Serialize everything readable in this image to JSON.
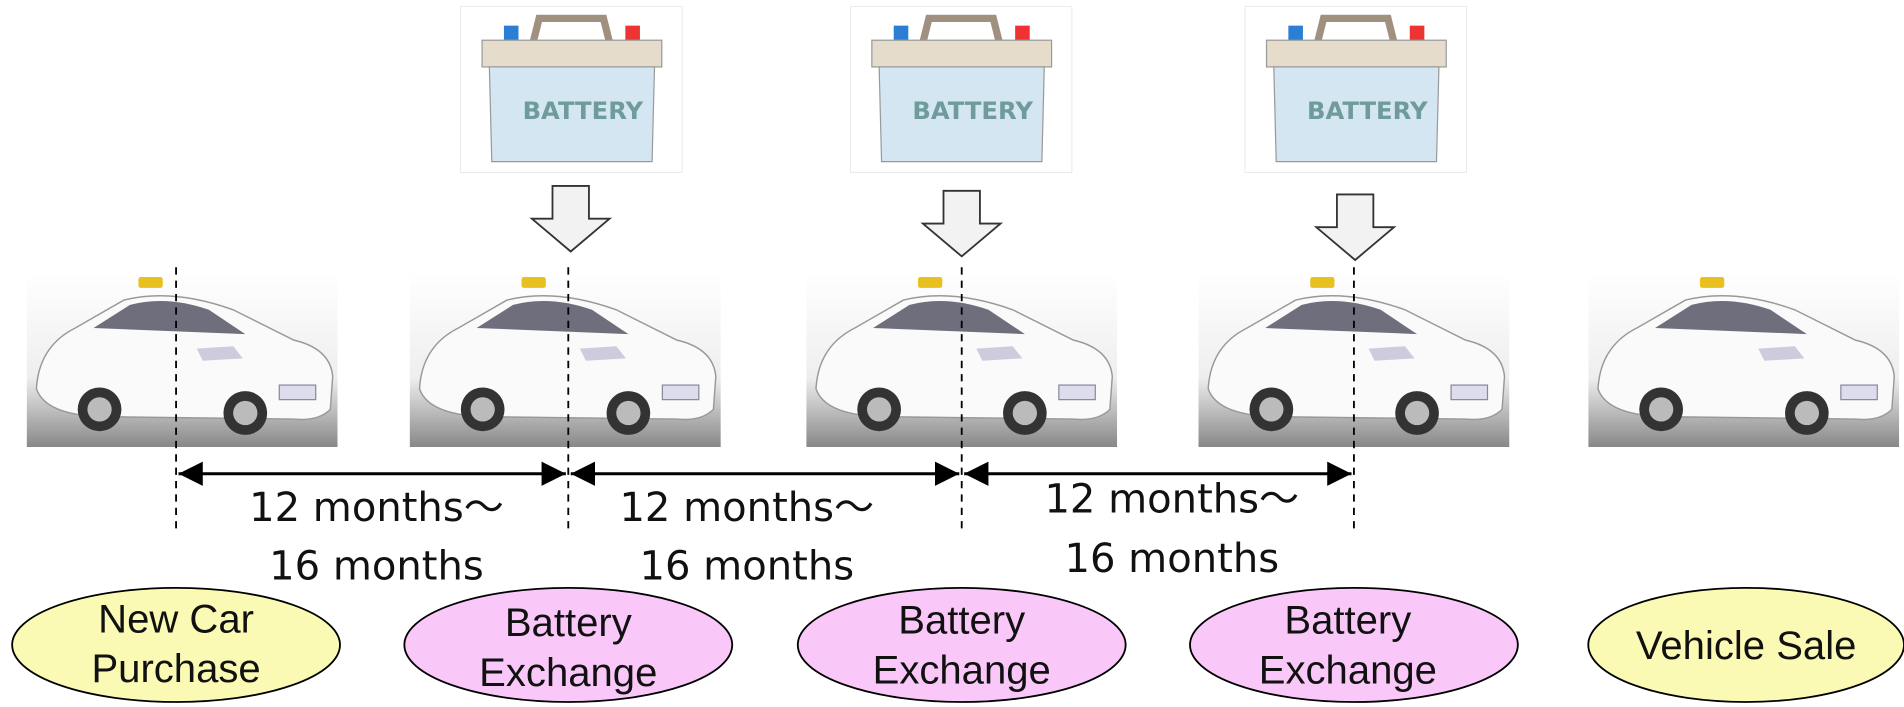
{
  "batteries": [
    {
      "label": "BATTERY"
    },
    {
      "label": "BATTERY"
    },
    {
      "label": "BATTERY"
    }
  ],
  "intervals": [
    {
      "line1": "12 months〜",
      "line2": "16 months"
    },
    {
      "line1": "12 months〜",
      "line2": "16 months"
    },
    {
      "line1": "12 months〜",
      "line2": "16 months"
    }
  ],
  "stages": [
    {
      "lines": [
        "New Car",
        "Purchase"
      ]
    },
    {
      "lines": [
        "Battery",
        "Exchange"
      ]
    },
    {
      "lines": [
        "Battery",
        "Exchange"
      ]
    },
    {
      "lines": [
        "Battery",
        "Exchange"
      ]
    },
    {
      "lines": [
        "Vehicle Sale"
      ]
    }
  ]
}
